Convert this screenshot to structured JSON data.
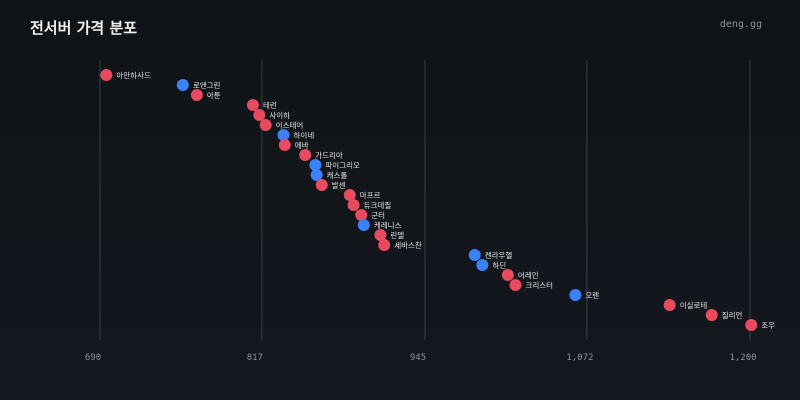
{
  "header": {
    "title": "전서버 가격 분포",
    "brand": "deng.gg"
  },
  "colors": {
    "red": "#e84a5f",
    "blue": "#3b82f6"
  },
  "chart_data": {
    "type": "scatter",
    "title": "전서버 가격 분포",
    "xlabel": "",
    "ylabel": "",
    "xlim": [
      690,
      1200
    ],
    "xticks": [
      {
        "value": 690,
        "label": "690"
      },
      {
        "value": 817,
        "label": "817"
      },
      {
        "value": 945,
        "label": "945"
      },
      {
        "value": 1072,
        "label": "1,072"
      },
      {
        "value": 1200,
        "label": "1,200"
      }
    ],
    "grid": true,
    "points": [
      {
        "label": "아만하사드",
        "x": 695,
        "color": "red"
      },
      {
        "label": "로엔그린",
        "x": 755,
        "color": "blue"
      },
      {
        "label": "아툰",
        "x": 766,
        "color": "red"
      },
      {
        "label": "테런",
        "x": 810,
        "color": "red"
      },
      {
        "label": "사이하",
        "x": 815,
        "color": "red"
      },
      {
        "label": "이스테어",
        "x": 820,
        "color": "red"
      },
      {
        "label": "하이네",
        "x": 834,
        "color": "blue"
      },
      {
        "label": "에바",
        "x": 835,
        "color": "red"
      },
      {
        "label": "가드리아",
        "x": 851,
        "color": "red"
      },
      {
        "label": "파이그리오",
        "x": 859,
        "color": "blue"
      },
      {
        "label": "캐스톨",
        "x": 860,
        "color": "blue"
      },
      {
        "label": "발센",
        "x": 864,
        "color": "red"
      },
      {
        "label": "마프르",
        "x": 886,
        "color": "red"
      },
      {
        "label": "듀크데필",
        "x": 889,
        "color": "red"
      },
      {
        "label": "군터",
        "x": 895,
        "color": "red"
      },
      {
        "label": "케레니스",
        "x": 897,
        "color": "blue"
      },
      {
        "label": "린델",
        "x": 910,
        "color": "red"
      },
      {
        "label": "세바스찬",
        "x": 913,
        "color": "red"
      },
      {
        "label": "켄라우헬",
        "x": 984,
        "color": "blue"
      },
      {
        "label": "하딘",
        "x": 990,
        "color": "blue"
      },
      {
        "label": "어레인",
        "x": 1010,
        "color": "red"
      },
      {
        "label": "크리스터",
        "x": 1016,
        "color": "red"
      },
      {
        "label": "오렌",
        "x": 1063,
        "color": "blue"
      },
      {
        "label": "이실로테",
        "x": 1137,
        "color": "red"
      },
      {
        "label": "질리언",
        "x": 1170,
        "color": "red"
      },
      {
        "label": "조우",
        "x": 1201,
        "color": "red"
      }
    ]
  }
}
